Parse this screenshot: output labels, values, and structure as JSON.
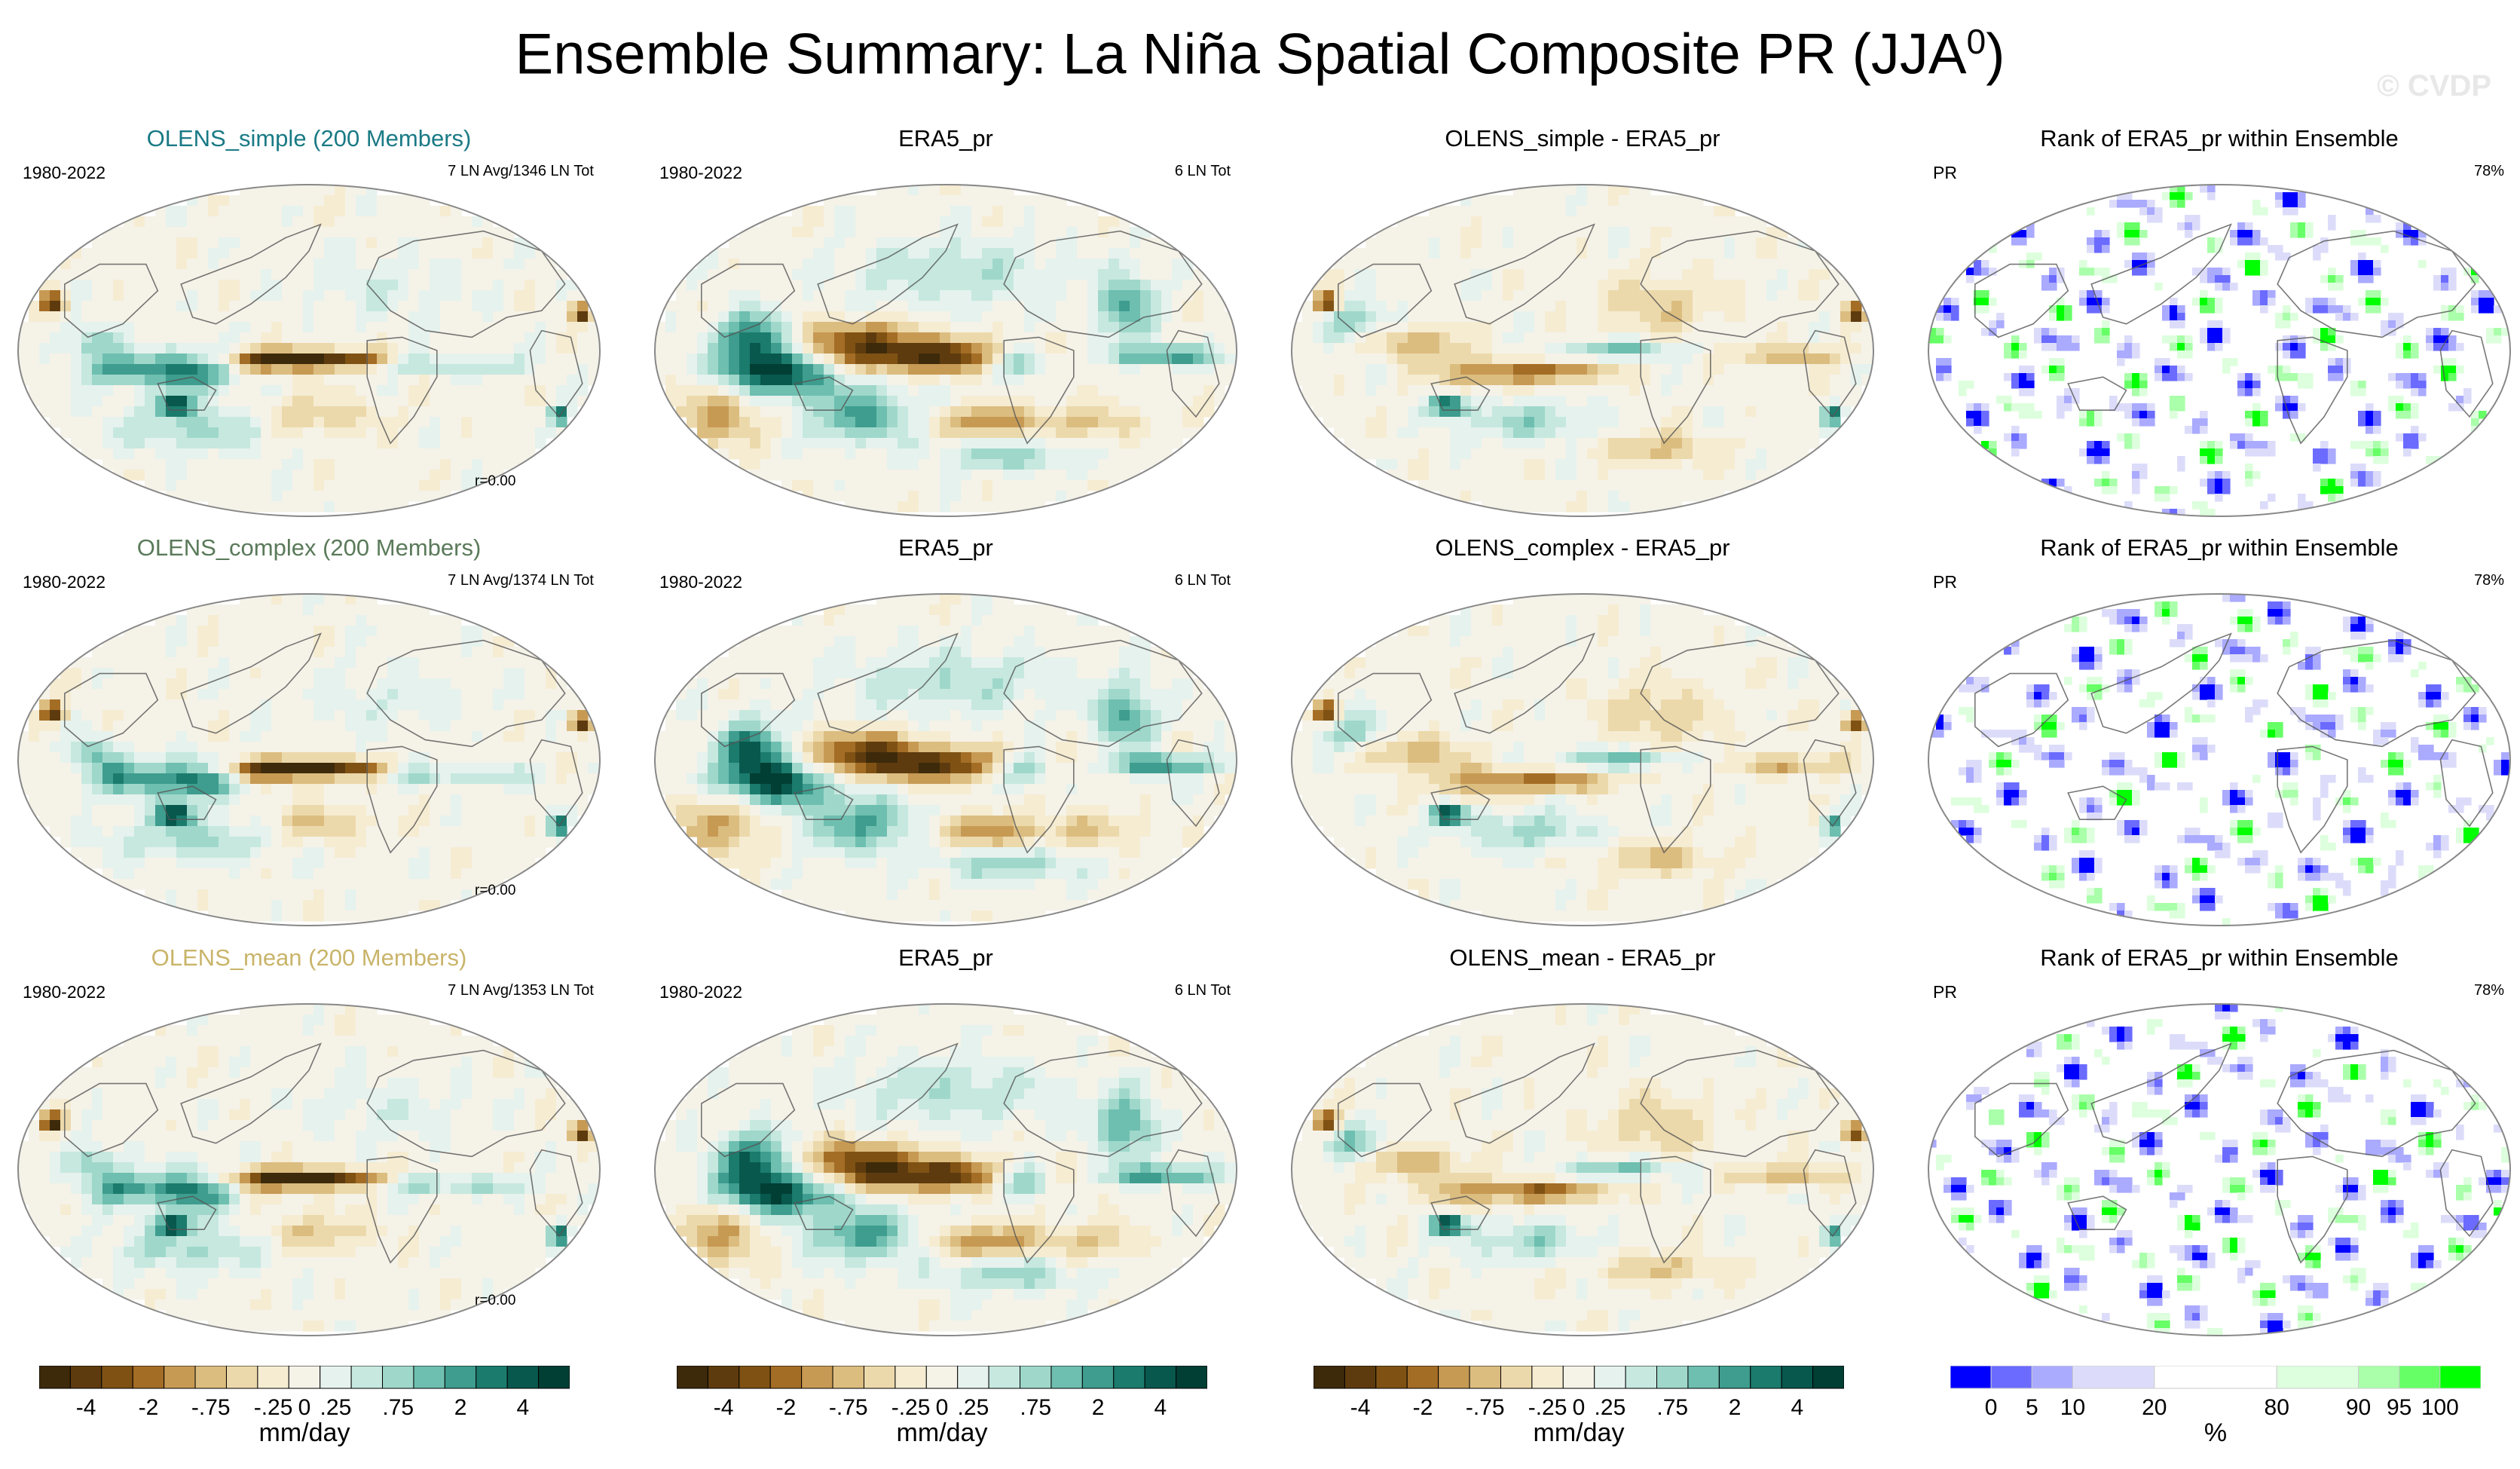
{
  "title": {
    "main": "Ensemble Summary: La Niña Spatial Composite PR (JJA",
    "superscript": "0",
    "close": ")"
  },
  "watermark": "© CVDP",
  "colors": {
    "diverging": [
      "#3d2a0a",
      "#5e3b0e",
      "#7f5214",
      "#a46d25",
      "#c79a54",
      "#dcbd80",
      "#ecd9ab",
      "#f5ecd2",
      "#f5f2e8",
      "#e6f2ee",
      "#c6e8df",
      "#9fd8cb",
      "#6ebfb0",
      "#3e9d8e",
      "#1b7b6d",
      "#08584d",
      "#013e34"
    ],
    "rank": [
      "#0000ff",
      "#6b6bff",
      "#aaaaff",
      "#dcdcfa",
      "#ffffff",
      "#ddffdd",
      "#aaffaa",
      "#66ff66",
      "#00ff00"
    ]
  },
  "chart_data": [
    {
      "type": "heatmap",
      "projection": "robinson",
      "title": "OLENS_simple (200 Members)",
      "title_color": "#1a7a85",
      "left_label": "1980-2022",
      "right_label": "7 LN Avg/1346 LN Tot",
      "corr_label": "r=0.00",
      "variable": "pr",
      "units": "mm/day"
    },
    {
      "type": "heatmap",
      "projection": "robinson",
      "title": "ERA5_pr",
      "title_color": "#000000",
      "left_label": "1980-2022",
      "right_label": "6 LN Tot",
      "variable": "pr",
      "units": "mm/day"
    },
    {
      "type": "heatmap",
      "projection": "robinson",
      "title": "OLENS_simple - ERA5_pr",
      "title_color": "#000000",
      "variable": "pr difference",
      "units": "mm/day"
    },
    {
      "type": "heatmap",
      "projection": "robinson",
      "title": "Rank of ERA5_pr within Ensemble",
      "title_color": "#000000",
      "left_label": "PR",
      "right_label": "78%",
      "variable": "rank",
      "units": "%"
    },
    {
      "type": "heatmap",
      "projection": "robinson",
      "title": "OLENS_complex (200 Members)",
      "title_color": "#5a7a5a",
      "left_label": "1980-2022",
      "right_label": "7 LN Avg/1374 LN Tot",
      "corr_label": "r=0.00",
      "variable": "pr",
      "units": "mm/day"
    },
    {
      "type": "heatmap",
      "projection": "robinson",
      "title": "ERA5_pr",
      "title_color": "#000000",
      "left_label": "1980-2022",
      "right_label": "6 LN Tot",
      "variable": "pr",
      "units": "mm/day"
    },
    {
      "type": "heatmap",
      "projection": "robinson",
      "title": "OLENS_complex - ERA5_pr",
      "title_color": "#000000",
      "variable": "pr difference",
      "units": "mm/day"
    },
    {
      "type": "heatmap",
      "projection": "robinson",
      "title": "Rank of ERA5_pr within Ensemble",
      "title_color": "#000000",
      "left_label": "PR",
      "right_label": "78%",
      "variable": "rank",
      "units": "%"
    },
    {
      "type": "heatmap",
      "projection": "robinson",
      "title": "OLENS_mean (200 Members)",
      "title_color": "#c9b46a",
      "left_label": "1980-2022",
      "right_label": "7 LN Avg/1353 LN Tot",
      "corr_label": "r=0.00",
      "variable": "pr",
      "units": "mm/day"
    },
    {
      "type": "heatmap",
      "projection": "robinson",
      "title": "ERA5_pr",
      "title_color": "#000000",
      "left_label": "1980-2022",
      "right_label": "6 LN Tot",
      "variable": "pr",
      "units": "mm/day"
    },
    {
      "type": "heatmap",
      "projection": "robinson",
      "title": "OLENS_mean - ERA5_pr",
      "title_color": "#000000",
      "variable": "pr difference",
      "units": "mm/day"
    },
    {
      "type": "heatmap",
      "projection": "robinson",
      "title": "Rank of ERA5_pr within Ensemble",
      "title_color": "#000000",
      "left_label": "PR",
      "right_label": "78%",
      "variable": "rank",
      "units": "%"
    }
  ],
  "colorbars": [
    {
      "type": "diverging",
      "tick_labels": [
        "-4",
        "-2",
        "-.75",
        "-.25",
        "0",
        ".25",
        ".75",
        "2",
        "4"
      ],
      "units": "mm/day"
    },
    {
      "type": "diverging",
      "tick_labels": [
        "-4",
        "-2",
        "-.75",
        "-.25",
        "0",
        ".25",
        ".75",
        "2",
        "4"
      ],
      "units": "mm/day"
    },
    {
      "type": "diverging",
      "tick_labels": [
        "-4",
        "-2",
        "-.75",
        "-.25",
        "0",
        ".25",
        ".75",
        "2",
        "4"
      ],
      "units": "mm/day"
    },
    {
      "type": "rank",
      "tick_labels": [
        "0",
        "5",
        "10",
        "20",
        "80",
        "90",
        "95",
        "100"
      ],
      "units": "%"
    }
  ]
}
